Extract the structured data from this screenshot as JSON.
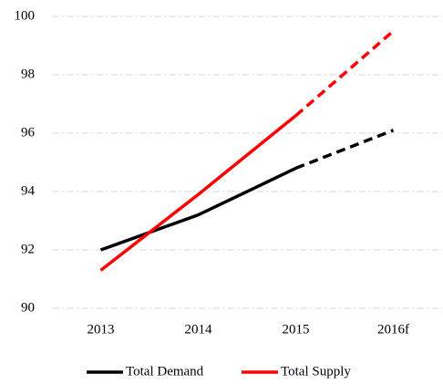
{
  "chart_data": {
    "type": "line",
    "categories": [
      "2013",
      "2014",
      "2015",
      "2016f"
    ],
    "series": [
      {
        "name": "Total Demand",
        "color": "#000000",
        "values": [
          92.0,
          93.2,
          94.8,
          96.1
        ]
      },
      {
        "name": "Total Supply",
        "color": "#ff0000",
        "values": [
          91.3,
          93.9,
          96.6,
          99.5
        ]
      }
    ],
    "dashed_after": "2015",
    "ylim": [
      90,
      100
    ],
    "yticks": [
      90,
      92,
      94,
      96,
      98,
      100
    ],
    "grid": true,
    "legend": "bottom"
  }
}
